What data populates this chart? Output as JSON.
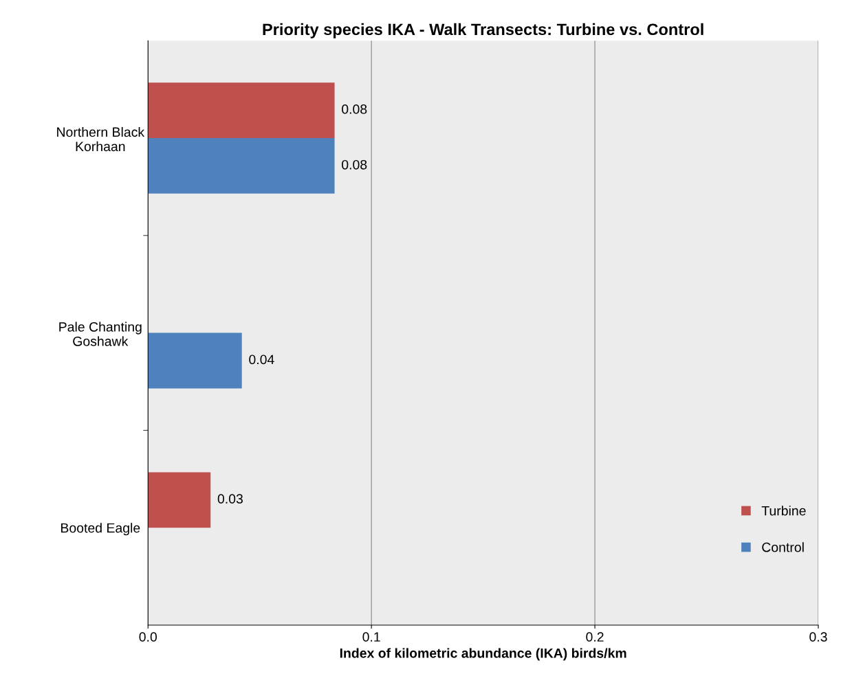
{
  "chart_data": {
    "type": "bar",
    "orientation": "horizontal",
    "title": "Priority species IKA - Walk Transects: Turbine vs. Control",
    "xlabel": "Index of kilometric abundance (IKA) birds/km",
    "categories": [
      "Northern Black\nKorhaan",
      "Pale Chanting\nGoshawk",
      "Booted Eagle"
    ],
    "series": [
      {
        "name": "Turbine",
        "color": "#c0504d",
        "values": [
          0.0835,
          null,
          0.028
        ],
        "value_labels": [
          "0.08",
          null,
          "0.03"
        ]
      },
      {
        "name": "Control",
        "color": "#4f81bd",
        "values": [
          0.0835,
          0.042,
          null
        ],
        "value_labels": [
          "0.08",
          "0.04",
          null
        ]
      }
    ],
    "xlim": [
      0,
      0.3
    ],
    "xticks": [
      {
        "value": 0,
        "label": "0.0"
      },
      {
        "value": 0.1,
        "label": "0.1"
      },
      {
        "value": 0.2,
        "label": "0.2"
      },
      {
        "value": 0.3,
        "label": "0.3"
      }
    ],
    "grid": "x",
    "legend": "bottom right"
  }
}
